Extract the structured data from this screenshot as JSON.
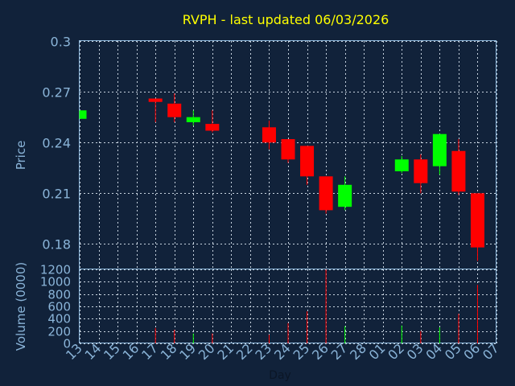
{
  "chart_data": {
    "type": "candlestick",
    "title": "RVPH - last updated 06/03/2026",
    "xlabel": "Day",
    "price_panel": {
      "ylabel": "Price",
      "ylim": [
        0.165,
        0.3
      ],
      "yticks": [
        "0.3",
        "0.27",
        "0.24",
        "0.21",
        "0.18"
      ],
      "grid": true
    },
    "volume_panel": {
      "ylabel": "Volume (0000)",
      "ylim": [
        0,
        1200
      ],
      "yticks": [
        "1200",
        "1000",
        "800",
        "600",
        "400",
        "200",
        "0"
      ],
      "grid": true
    },
    "x_tick_labels": [
      "13",
      "14",
      "15",
      "16",
      "17",
      "18",
      "19",
      "20",
      "21",
      "22",
      "23",
      "24",
      "25",
      "26",
      "27",
      "28",
      "01",
      "02",
      "03",
      "04",
      "05",
      "06",
      "07"
    ],
    "candles": [
      {
        "day": "13",
        "open": 0.254,
        "close": 0.259,
        "high": 0.259,
        "low": 0.254,
        "volume": 0
      },
      {
        "day": "17",
        "open": 0.266,
        "close": 0.264,
        "high": 0.266,
        "low": 0.252,
        "volume": 250
      },
      {
        "day": "18",
        "open": 0.263,
        "close": 0.255,
        "high": 0.269,
        "low": 0.252,
        "volume": 220
      },
      {
        "day": "19",
        "open": 0.252,
        "close": 0.255,
        "high": 0.259,
        "low": 0.25,
        "volume": 160
      },
      {
        "day": "20",
        "open": 0.251,
        "close": 0.247,
        "high": 0.259,
        "low": 0.246,
        "volume": 160
      },
      {
        "day": "23",
        "open": 0.249,
        "close": 0.24,
        "high": 0.253,
        "low": 0.236,
        "volume": 140
      },
      {
        "day": "24",
        "open": 0.242,
        "close": 0.23,
        "high": 0.242,
        "low": 0.228,
        "volume": 330
      },
      {
        "day": "25",
        "open": 0.238,
        "close": 0.22,
        "high": 0.238,
        "low": 0.215,
        "volume": 520
      },
      {
        "day": "26",
        "open": 0.22,
        "close": 0.2,
        "high": 0.22,
        "low": 0.198,
        "volume": 1200
      },
      {
        "day": "27",
        "open": 0.202,
        "close": 0.215,
        "high": 0.22,
        "low": 0.2,
        "volume": 280
      },
      {
        "day": "02",
        "open": 0.223,
        "close": 0.23,
        "high": 0.232,
        "low": 0.222,
        "volume": 290
      },
      {
        "day": "03",
        "open": 0.23,
        "close": 0.216,
        "high": 0.233,
        "low": 0.21,
        "volume": 200
      },
      {
        "day": "04",
        "open": 0.226,
        "close": 0.245,
        "high": 0.245,
        "low": 0.221,
        "volume": 260
      },
      {
        "day": "05",
        "open": 0.235,
        "close": 0.211,
        "high": 0.242,
        "low": 0.209,
        "volume": 480
      },
      {
        "day": "06",
        "open": 0.21,
        "close": 0.178,
        "high": 0.21,
        "low": 0.17,
        "volume": 950
      }
    ],
    "colors": {
      "up": "#00ff00",
      "down": "#ff0000",
      "title": "#ffff00",
      "axis_text": "#8ab4d8",
      "grid": "#c8d4e0",
      "background": "#11223a"
    }
  }
}
